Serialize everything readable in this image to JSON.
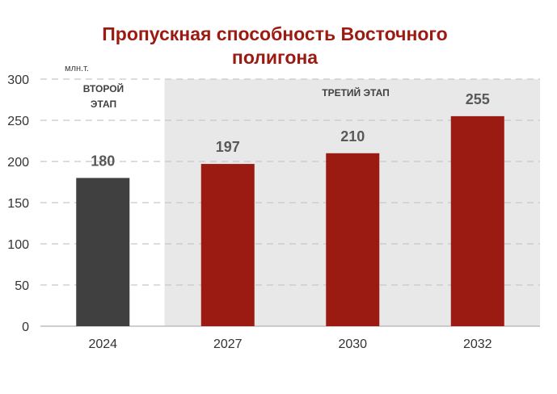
{
  "chart_data": {
    "type": "bar",
    "title_line1": "Пропускная способность Восточного",
    "title_line2": "полигона",
    "unit_label": "млн.т.",
    "categories": [
      "2024",
      "2027",
      "2030",
      "2032"
    ],
    "values": [
      180,
      197,
      210,
      255
    ],
    "data_labels": [
      "180",
      "197",
      "210",
      "255"
    ],
    "bar_colors": [
      "#404040",
      "#9b1b12",
      "#9b1b12",
      "#9b1b12"
    ],
    "ylim": [
      0,
      300
    ],
    "yticks": [
      0,
      50,
      100,
      150,
      200,
      250,
      300
    ],
    "grid": true,
    "phases": [
      {
        "label_line1": "ВТОРОЙ",
        "label_line2": "ЭТАП",
        "categories": [
          "2024"
        ]
      },
      {
        "label_line1": "ТРЕТИЙ ЭТАП",
        "categories": [
          "2027",
          "2030",
          "2032"
        ]
      }
    ],
    "phase3_background": "#e8e8e8"
  }
}
